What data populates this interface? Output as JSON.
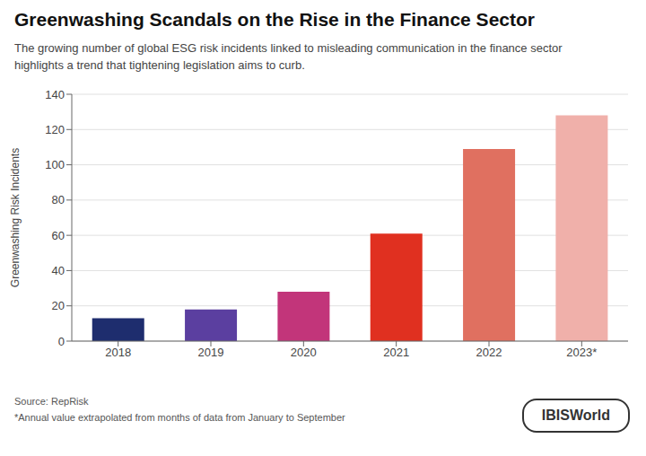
{
  "chart_data": {
    "type": "bar",
    "title": "Greenwashing Scandals on the Rise in the Finance Sector",
    "subtitle": "The growing number of global ESG risk incidents linked to misleading communication in the finance sector\nhighlights a trend that tightening legislation aims to curb.",
    "categories": [
      "2018",
      "2019",
      "2020",
      "2021",
      "2022",
      "2023*"
    ],
    "values": [
      13,
      18,
      28,
      61,
      109,
      128
    ],
    "colors": [
      "#1e2d6e",
      "#5b3fa0",
      "#c2357a",
      "#e03020",
      "#e07060",
      "#f0b0aa"
    ],
    "ylabel": "Greenwashing Risk Incidents",
    "ylim": [
      0,
      140
    ],
    "yticks": [
      0,
      20,
      40,
      60,
      80,
      100,
      120,
      140
    ],
    "grid": true,
    "annotations": [
      "Source: RepRisk",
      "*Annual value extrapolated from months of data from January to September",
      "IBISWorld"
    ]
  }
}
